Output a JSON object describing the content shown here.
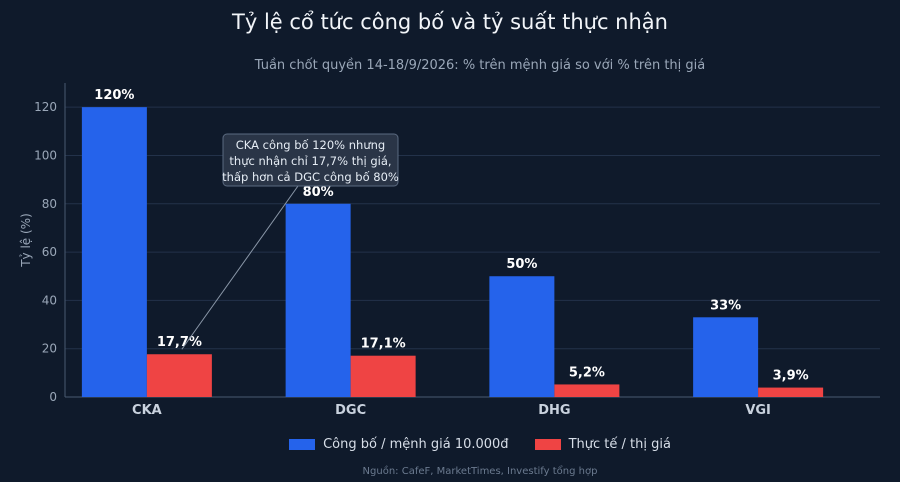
{
  "colors": {
    "background": "#0f1a2b",
    "grid": "#23324a",
    "axis": "#4a5a70",
    "announced": "#2563eb",
    "actual": "#ef4444"
  },
  "footer": {
    "source": "Nguồn: CafeF, MarketTimes, Investify tổng hợp"
  },
  "chart_data": {
    "type": "bar",
    "title": "Tỷ lệ cổ tức công bố và tỷ suất thực nhận",
    "subtitle": "Tuần chốt quyền 14-18/9/2026: % trên mệnh giá so với % trên thị giá",
    "xlabel": "",
    "ylabel": "Tỷ lệ (%)",
    "ylim": [
      0,
      130
    ],
    "yticks": [
      0,
      20,
      40,
      60,
      80,
      100,
      120
    ],
    "grid": true,
    "legend_position": "bottom",
    "categories": [
      "CKA",
      "DGC",
      "DHG",
      "VGI"
    ],
    "series": [
      {
        "name": "Công bố / mệnh giá 10.000đ",
        "values": [
          120,
          80,
          50,
          33
        ],
        "labels": [
          "120%",
          "80%",
          "50%",
          "33%"
        ]
      },
      {
        "name": "Thực tế / thị giá",
        "values": [
          17.7,
          17.1,
          5.2,
          3.9
        ],
        "labels": [
          "17,7%",
          "17,1%",
          "5,2%",
          "3,9%"
        ]
      }
    ],
    "annotation": {
      "lines": [
        "CKA công bố 120% nhưng",
        "thực nhận chỉ 17,7% thị giá,",
        "thấp hơn cả DGC công bố 80%"
      ],
      "target_category": "CKA",
      "target_series": 1
    }
  }
}
